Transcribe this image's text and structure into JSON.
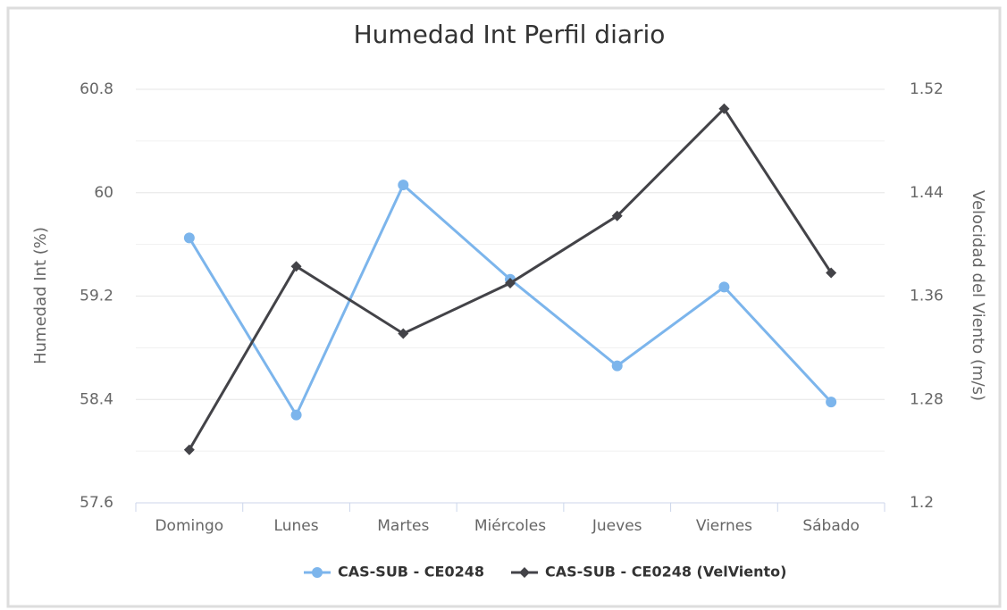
{
  "chart_data": {
    "type": "line",
    "title": "Humedad Int Perfil diario",
    "ylabel": "Humedad Int (%)",
    "y2label": "Velocidad del Viento (m/s)",
    "categories": [
      "Domingo",
      "Lunes",
      "Martes",
      "Miércoles",
      "Jueves",
      "Viernes",
      "Sábado"
    ],
    "series": [
      {
        "name": "CAS-SUB - CE0248",
        "color": "#7cb5ec",
        "marker": "circle",
        "values": [
          59.65,
          58.28,
          60.06,
          59.33,
          58.66,
          59.27,
          58.38
        ]
      },
      {
        "name": "CAS-SUB - CE0248 (VelViento)",
        "color": "#434348",
        "marker": "diamond",
        "axis": "y2",
        "values": [
          1.241,
          1.383,
          1.331,
          1.37,
          1.422,
          1.505,
          1.378
        ]
      }
    ],
    "ylim": [
      57.6,
      60.8
    ],
    "yticks": [
      57.6,
      58.4,
      59.2,
      60,
      60.8
    ],
    "y2lim": [
      1.2,
      1.52
    ],
    "y2ticks": [
      1.2,
      1.28,
      1.36,
      1.44,
      1.52
    ],
    "grid": true,
    "legend": "bottom"
  }
}
